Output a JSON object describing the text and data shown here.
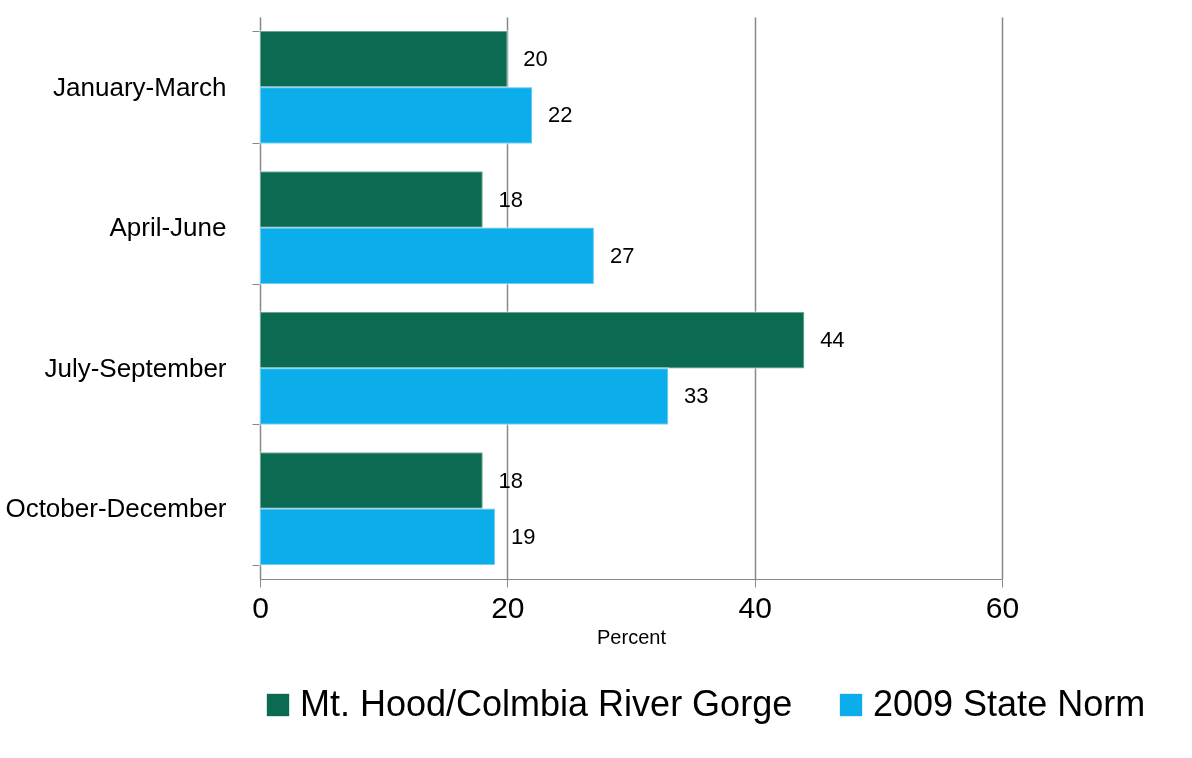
{
  "chart_data": {
    "type": "bar",
    "orientation": "horizontal",
    "xlabel": "Percent",
    "categories": [
      "January-March",
      "April-June",
      "July-September",
      "October-December"
    ],
    "series": [
      {
        "name": "Mt. Hood/Colmbia River Gorge",
        "color": "#0b6a52",
        "values": [
          20,
          18,
          44,
          18
        ]
      },
      {
        "name": "2009 State Norm",
        "color": "#0cadeb",
        "values": [
          22,
          27,
          33,
          19
        ]
      }
    ],
    "xlim": [
      0,
      60
    ],
    "xticks": [
      0,
      20,
      40,
      60
    ],
    "grid": "x",
    "legend": "bottom",
    "data_labels": true
  }
}
